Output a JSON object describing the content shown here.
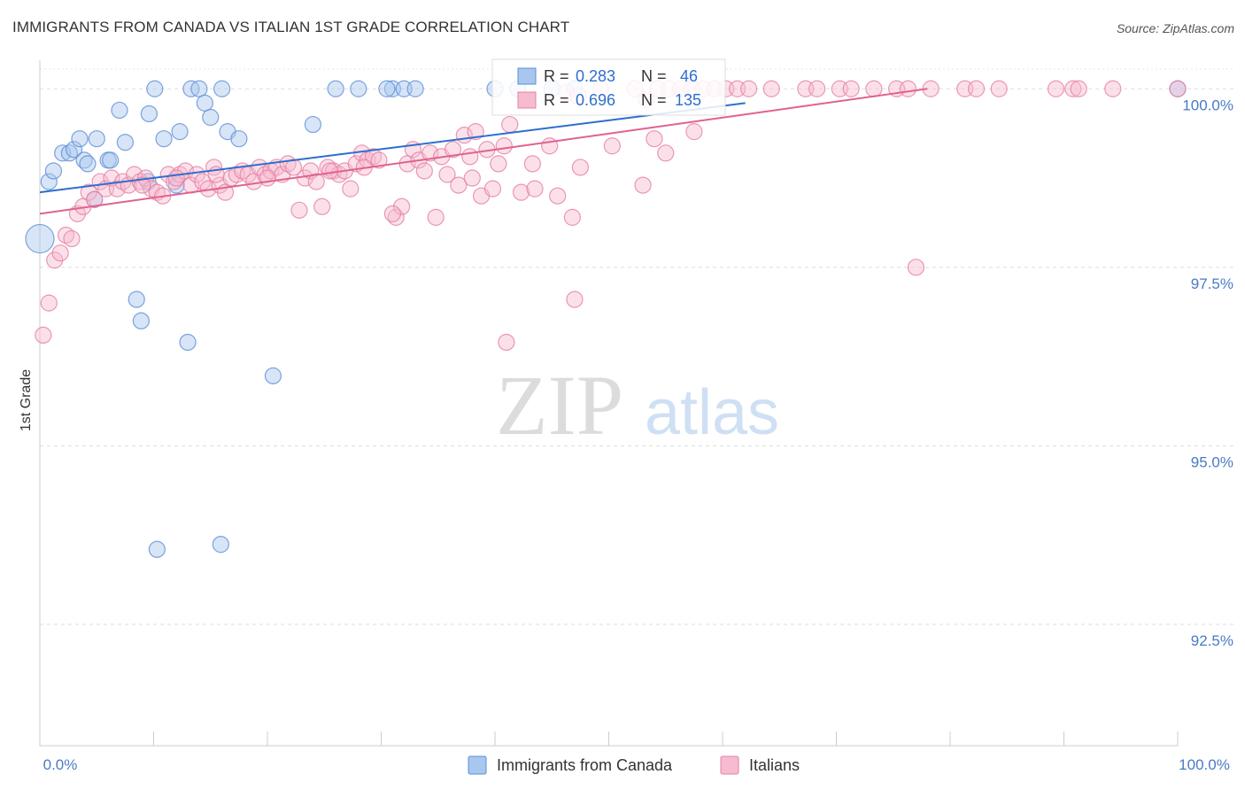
{
  "chart_data": {
    "type": "scatter",
    "title": "IMMIGRANTS FROM CANADA VS ITALIAN 1ST GRADE CORRELATION CHART",
    "source": "Source: ZipAtlas.com",
    "xlabel": "",
    "ylabel": "1st Grade",
    "xlim": [
      0,
      100
    ],
    "ylim": [
      90.8,
      100.4
    ],
    "x_tick_labels": {
      "left": "0.0%",
      "right": "100.0%"
    },
    "y_ticks": [
      {
        "value": 100.0,
        "label": "100.0%"
      },
      {
        "value": 97.5,
        "label": "97.5%"
      },
      {
        "value": 95.0,
        "label": "95.0%"
      },
      {
        "value": 92.5,
        "label": "92.5%"
      }
    ],
    "grid": true,
    "legend_position": "top-center",
    "watermark": {
      "zip": "ZIP",
      "atlas": "atlas"
    },
    "series": [
      {
        "name": "Immigrants from Canada",
        "color": "#5b8fd6",
        "fill": "#a9c6ee",
        "trend_color": "#2e6fcc",
        "R": "0.283",
        "N": "46",
        "trend": {
          "x0": 0,
          "y0": 98.55,
          "x1": 62,
          "y1": 99.8
        },
        "points": [
          [
            0,
            97.9
          ],
          [
            0.8,
            98.7
          ],
          [
            1.2,
            98.85
          ],
          [
            2.0,
            99.1
          ],
          [
            2.6,
            99.1
          ],
          [
            3.0,
            99.15
          ],
          [
            3.5,
            99.3
          ],
          [
            3.9,
            99.0
          ],
          [
            4.2,
            98.95
          ],
          [
            5.0,
            99.3
          ],
          [
            6.0,
            99.0
          ],
          [
            6.2,
            99.0
          ],
          [
            4.8,
            98.45
          ],
          [
            7.0,
            99.7
          ],
          [
            7.5,
            99.25
          ],
          [
            9.5,
            98.7
          ],
          [
            9.6,
            99.65
          ],
          [
            10.1,
            100.0
          ],
          [
            10.9,
            99.3
          ],
          [
            12.0,
            98.65
          ],
          [
            12.3,
            99.4
          ],
          [
            13.3,
            100.0
          ],
          [
            14.0,
            100.0
          ],
          [
            14.5,
            99.8
          ],
          [
            15.0,
            99.6
          ],
          [
            16.0,
            100.0
          ],
          [
            16.5,
            99.4
          ],
          [
            17.5,
            99.3
          ],
          [
            24.0,
            99.5
          ],
          [
            26.0,
            100.0
          ],
          [
            28.0,
            100.0
          ],
          [
            31.0,
            100.0
          ],
          [
            32.0,
            100.0
          ],
          [
            33.0,
            100.0
          ],
          [
            40.0,
            100.0
          ],
          [
            42.0,
            100.0
          ],
          [
            45.0,
            100.0
          ],
          [
            100.0,
            100.0
          ],
          [
            8.5,
            97.05
          ],
          [
            8.9,
            96.75
          ],
          [
            13.0,
            96.45
          ],
          [
            20.5,
            95.98
          ],
          [
            10.3,
            93.55
          ],
          [
            15.9,
            93.62
          ],
          [
            47.0,
            100.0
          ],
          [
            30.5,
            100.0
          ]
        ]
      },
      {
        "name": "Italians",
        "color": "#e57fa3",
        "fill": "#f6bbd0",
        "trend_color": "#e0628f",
        "R": "0.696",
        "N": "135",
        "trend": {
          "x0": 0,
          "y0": 98.25,
          "x1": 78,
          "y1": 100.0
        },
        "points": [
          [
            0.3,
            96.55
          ],
          [
            0.8,
            97.0
          ],
          [
            1.3,
            97.6
          ],
          [
            1.8,
            97.7
          ],
          [
            2.3,
            97.95
          ],
          [
            2.8,
            97.9
          ],
          [
            3.3,
            98.25
          ],
          [
            3.8,
            98.35
          ],
          [
            4.3,
            98.55
          ],
          [
            4.8,
            98.45
          ],
          [
            5.3,
            98.7
          ],
          [
            5.8,
            98.6
          ],
          [
            6.3,
            98.75
          ],
          [
            6.8,
            98.6
          ],
          [
            7.3,
            98.7
          ],
          [
            7.8,
            98.65
          ],
          [
            8.3,
            98.8
          ],
          [
            8.8,
            98.7
          ],
          [
            9.3,
            98.75
          ],
          [
            9.8,
            98.6
          ],
          [
            10.3,
            98.55
          ],
          [
            10.8,
            98.5
          ],
          [
            11.3,
            98.8
          ],
          [
            11.8,
            98.7
          ],
          [
            12.3,
            98.8
          ],
          [
            12.8,
            98.85
          ],
          [
            13.3,
            98.65
          ],
          [
            13.8,
            98.8
          ],
          [
            14.3,
            98.7
          ],
          [
            14.8,
            98.6
          ],
          [
            15.3,
            98.9
          ],
          [
            15.8,
            98.65
          ],
          [
            16.3,
            98.55
          ],
          [
            16.8,
            98.75
          ],
          [
            17.3,
            98.8
          ],
          [
            17.8,
            98.85
          ],
          [
            18.3,
            98.8
          ],
          [
            18.8,
            98.7
          ],
          [
            19.3,
            98.9
          ],
          [
            19.8,
            98.8
          ],
          [
            20.3,
            98.85
          ],
          [
            20.8,
            98.9
          ],
          [
            21.3,
            98.8
          ],
          [
            21.8,
            98.95
          ],
          [
            22.3,
            98.9
          ],
          [
            22.8,
            98.3
          ],
          [
            23.3,
            98.75
          ],
          [
            23.8,
            98.85
          ],
          [
            24.3,
            98.7
          ],
          [
            24.8,
            98.35
          ],
          [
            25.3,
            98.9
          ],
          [
            25.8,
            98.85
          ],
          [
            26.3,
            98.8
          ],
          [
            26.8,
            98.85
          ],
          [
            27.3,
            98.6
          ],
          [
            27.8,
            98.95
          ],
          [
            28.3,
            99.1
          ],
          [
            28.8,
            99.0
          ],
          [
            29.3,
            99.05
          ],
          [
            29.8,
            99.0
          ],
          [
            31.3,
            98.2
          ],
          [
            31.8,
            98.35
          ],
          [
            32.3,
            98.95
          ],
          [
            32.8,
            99.15
          ],
          [
            33.3,
            99.0
          ],
          [
            33.8,
            98.85
          ],
          [
            34.3,
            99.1
          ],
          [
            34.8,
            98.2
          ],
          [
            35.3,
            99.05
          ],
          [
            35.8,
            98.8
          ],
          [
            36.3,
            99.15
          ],
          [
            36.8,
            98.65
          ],
          [
            37.3,
            99.35
          ],
          [
            37.8,
            99.05
          ],
          [
            38.3,
            99.4
          ],
          [
            38.8,
            98.5
          ],
          [
            39.3,
            99.15
          ],
          [
            39.8,
            98.6
          ],
          [
            40.3,
            98.95
          ],
          [
            40.8,
            99.2
          ],
          [
            41.3,
            99.5
          ],
          [
            42.3,
            98.55
          ],
          [
            43.3,
            98.95
          ],
          [
            44.8,
            99.2
          ],
          [
            46.3,
            99.95
          ],
          [
            46.8,
            98.2
          ],
          [
            47.3,
            99.9
          ],
          [
            49.3,
            100.0
          ],
          [
            50.3,
            99.2
          ],
          [
            52.3,
            100.0
          ],
          [
            53.3,
            99.85
          ],
          [
            54.3,
            100.0
          ],
          [
            55.3,
            100.0
          ],
          [
            56.3,
            100.0
          ],
          [
            57.3,
            100.0
          ],
          [
            58.3,
            100.0
          ],
          [
            59.3,
            100.0
          ],
          [
            60.3,
            100.0
          ],
          [
            61.3,
            100.0
          ],
          [
            62.3,
            100.0
          ],
          [
            64.3,
            100.0
          ],
          [
            67.3,
            100.0
          ],
          [
            68.3,
            100.0
          ],
          [
            70.3,
            100.0
          ],
          [
            71.3,
            100.0
          ],
          [
            73.3,
            100.0
          ],
          [
            75.3,
            100.0
          ],
          [
            76.3,
            100.0
          ],
          [
            78.3,
            100.0
          ],
          [
            81.3,
            100.0
          ],
          [
            82.3,
            100.0
          ],
          [
            84.3,
            100.0
          ],
          [
            89.3,
            100.0
          ],
          [
            90.8,
            100.0
          ],
          [
            91.3,
            100.0
          ],
          [
            94.3,
            100.0
          ],
          [
            100.0,
            100.0
          ],
          [
            47.0,
            97.05
          ],
          [
            41.0,
            96.45
          ],
          [
            77.0,
            97.5
          ],
          [
            53.0,
            98.65
          ],
          [
            43.5,
            98.6
          ],
          [
            45.5,
            98.5
          ],
          [
            47.5,
            98.9
          ],
          [
            31.0,
            98.25
          ],
          [
            28.5,
            98.9
          ],
          [
            55.0,
            99.1
          ],
          [
            57.5,
            99.4
          ],
          [
            54.0,
            99.3
          ],
          [
            20.0,
            98.75
          ],
          [
            38.0,
            98.75
          ],
          [
            25.5,
            98.85
          ],
          [
            15.5,
            98.8
          ],
          [
            9.0,
            98.65
          ],
          [
            12.0,
            98.75
          ]
        ]
      }
    ]
  }
}
